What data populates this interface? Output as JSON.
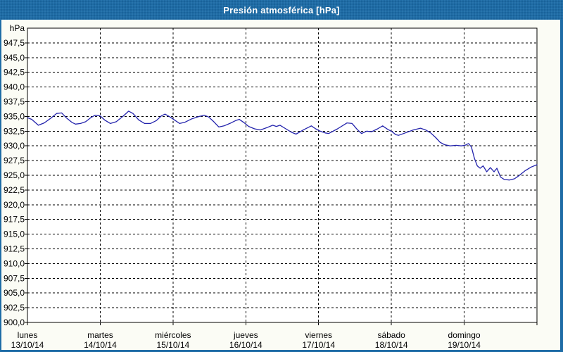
{
  "window": {
    "title": "Presión atmosférica [hPa]"
  },
  "colors": {
    "titlebar_bg": "#1E6CA6",
    "titlebar_text": "#FFFFFF",
    "window_border": "#1E6CA6",
    "content_bg": "#FBFCF5",
    "plot_bg": "#FFFFFF",
    "grid_color": "#000000",
    "axis_color": "#000000",
    "text_color": "#000000",
    "line_color": "#2323AC"
  },
  "chart_data": {
    "type": "line",
    "title": "Presión atmosférica [hPa]",
    "grid": "dashed",
    "legend_position": "none",
    "y_axis": {
      "unit_label": "hPa",
      "min": 900,
      "max": 950,
      "tick_step": 2.5,
      "tick_labels_top_to_bottom": [
        "947,5",
        "945,0",
        "942,5",
        "940,0",
        "937,5",
        "935,0",
        "932,5",
        "930,0",
        "927,5",
        "925,0",
        "922,5",
        "920,0",
        "917,5",
        "915,0",
        "912,5",
        "910,0",
        "907,5",
        "905,0",
        "902,5",
        "900,0"
      ]
    },
    "x_axis": {
      "days": [
        {
          "name": "lunes",
          "date": "13/10/14"
        },
        {
          "name": "martes",
          "date": "14/10/14"
        },
        {
          "name": "miércoles",
          "date": "15/10/14"
        },
        {
          "name": "jueves",
          "date": "16/10/14"
        },
        {
          "name": "viernes",
          "date": "17/10/14"
        },
        {
          "name": "sábado",
          "date": "18/10/14"
        },
        {
          "name": "domingo",
          "date": "19/10/14"
        }
      ]
    },
    "series": [
      {
        "name": "Presión atmosférica",
        "color": "#2323AC",
        "points_day_hpa": [
          [
            0.0,
            934.8
          ],
          [
            0.06,
            934.5
          ],
          [
            0.15,
            933.5
          ],
          [
            0.23,
            933.9
          ],
          [
            0.31,
            934.6
          ],
          [
            0.4,
            935.5
          ],
          [
            0.47,
            935.6
          ],
          [
            0.54,
            934.7
          ],
          [
            0.61,
            934.0
          ],
          [
            0.66,
            933.7
          ],
          [
            0.73,
            933.8
          ],
          [
            0.8,
            934.1
          ],
          [
            0.87,
            934.8
          ],
          [
            0.93,
            935.2
          ],
          [
            1.0,
            935.1
          ],
          [
            1.06,
            934.4
          ],
          [
            1.14,
            933.8
          ],
          [
            1.22,
            934.1
          ],
          [
            1.31,
            935.0
          ],
          [
            1.39,
            935.9
          ],
          [
            1.45,
            935.5
          ],
          [
            1.53,
            934.4
          ],
          [
            1.61,
            933.8
          ],
          [
            1.69,
            933.8
          ],
          [
            1.77,
            934.3
          ],
          [
            1.84,
            935.1
          ],
          [
            1.89,
            935.4
          ],
          [
            1.96,
            934.9
          ],
          [
            2.02,
            934.4
          ],
          [
            2.09,
            933.8
          ],
          [
            2.16,
            934.0
          ],
          [
            2.26,
            934.6
          ],
          [
            2.36,
            935.0
          ],
          [
            2.43,
            935.2
          ],
          [
            2.49,
            934.9
          ],
          [
            2.56,
            934.1
          ],
          [
            2.63,
            933.2
          ],
          [
            2.7,
            933.4
          ],
          [
            2.78,
            933.8
          ],
          [
            2.86,
            934.3
          ],
          [
            2.91,
            934.5
          ],
          [
            2.97,
            934.0
          ],
          [
            3.04,
            933.3
          ],
          [
            3.12,
            932.9
          ],
          [
            3.2,
            932.7
          ],
          [
            3.29,
            933.1
          ],
          [
            3.37,
            933.5
          ],
          [
            3.42,
            933.3
          ],
          [
            3.47,
            933.5
          ],
          [
            3.55,
            932.9
          ],
          [
            3.63,
            932.3
          ],
          [
            3.69,
            932.0
          ],
          [
            3.79,
            932.7
          ],
          [
            3.9,
            933.4
          ],
          [
            3.96,
            932.9
          ],
          [
            4.02,
            932.5
          ],
          [
            4.09,
            932.2
          ],
          [
            4.14,
            932.1
          ],
          [
            4.26,
            932.9
          ],
          [
            4.39,
            933.9
          ],
          [
            4.46,
            933.8
          ],
          [
            4.53,
            932.8
          ],
          [
            4.59,
            932.1
          ],
          [
            4.66,
            932.5
          ],
          [
            4.73,
            932.4
          ],
          [
            4.81,
            932.9
          ],
          [
            4.88,
            933.4
          ],
          [
            4.95,
            932.8
          ],
          [
            5.01,
            932.4
          ],
          [
            5.06,
            931.9
          ],
          [
            5.1,
            931.8
          ],
          [
            5.19,
            932.2
          ],
          [
            5.3,
            932.7
          ],
          [
            5.4,
            933.0
          ],
          [
            5.47,
            932.7
          ],
          [
            5.54,
            932.2
          ],
          [
            5.61,
            931.4
          ],
          [
            5.67,
            930.6
          ],
          [
            5.73,
            930.2
          ],
          [
            5.81,
            930.0
          ],
          [
            5.89,
            930.1
          ],
          [
            5.96,
            930.0
          ],
          [
            6.01,
            930.1
          ],
          [
            6.06,
            930.4
          ],
          [
            6.1,
            929.8
          ],
          [
            6.14,
            927.9
          ],
          [
            6.18,
            926.6
          ],
          [
            6.22,
            926.2
          ],
          [
            6.26,
            926.6
          ],
          [
            6.31,
            925.6
          ],
          [
            6.36,
            926.3
          ],
          [
            6.41,
            925.6
          ],
          [
            6.45,
            926.2
          ],
          [
            6.5,
            924.7
          ],
          [
            6.55,
            924.3
          ],
          [
            6.62,
            924.2
          ],
          [
            6.69,
            924.4
          ],
          [
            6.75,
            924.9
          ],
          [
            6.84,
            925.8
          ],
          [
            6.92,
            926.4
          ],
          [
            7.0,
            926.8
          ]
        ]
      }
    ]
  }
}
